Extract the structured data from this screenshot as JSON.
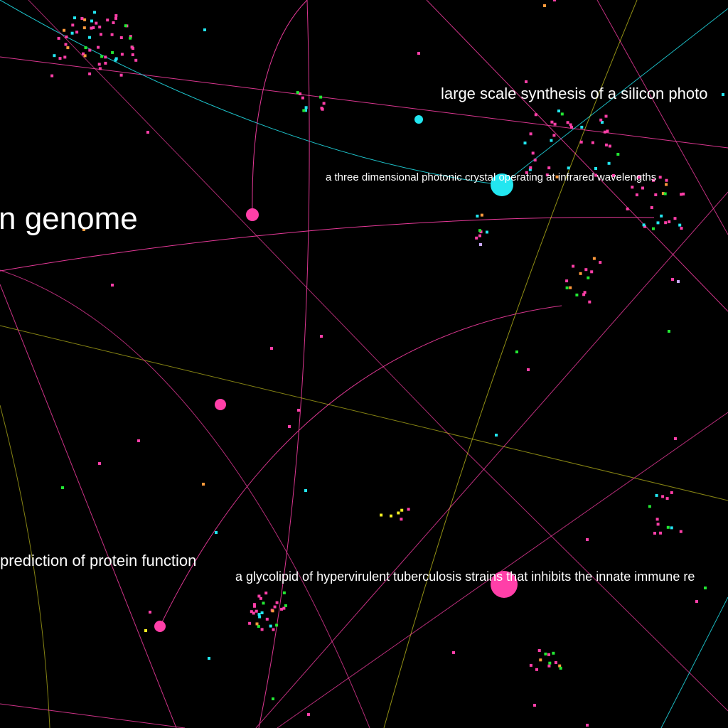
{
  "colors": {
    "background": "#000000",
    "pink": "#ff3fa8",
    "cyan": "#22e6f0",
    "green": "#22e633",
    "orange": "#ff9a3c",
    "yellow": "#f2ee22",
    "lavender": "#c9a8ff",
    "label": "#ffffff"
  },
  "labels": {
    "genome": "n genome",
    "silicon": "large scale synthesis of a silicon photo",
    "photonic": "a three dimensional photonic crystal operating at infrared wavelengths",
    "protein": "prediction of protein function",
    "glycolipid": "a glycolipid of hypervirulent tuberculosis strains that inhibits the innate immune re"
  }
}
